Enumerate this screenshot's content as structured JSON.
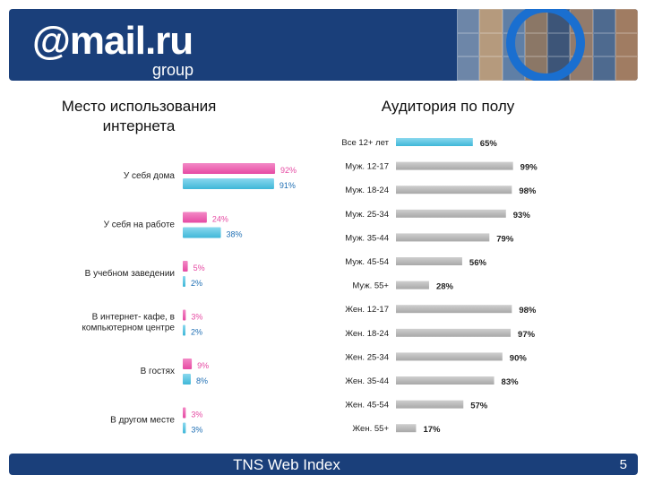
{
  "header": {
    "logo_text": "@mail.ru",
    "logo_sub": "group"
  },
  "footer": {
    "source": "TNS Web Index",
    "page_number": "5"
  },
  "colors": {
    "pink": "#e64aa3",
    "blue": "#3fb7d8",
    "gray": "#a8a8a8",
    "brand_blue": "#1a3f7a"
  },
  "chart_data": [
    {
      "type": "bar",
      "title": "Место использования интернета",
      "categories": [
        "У себя дома",
        "У себя на работе",
        "В учебном заведении",
        "В интернет- кафе, в компьютерном центре",
        "В гостях",
        "В другом месте"
      ],
      "category_lines": [
        [
          "У себя дома"
        ],
        [
          "У себя на работе"
        ],
        [
          "В учебном заведении"
        ],
        [
          "В интернет- кафе, в",
          "компьютерном центре"
        ],
        [
          "В гостях"
        ],
        [
          "В другом месте"
        ]
      ],
      "series": [
        {
          "values": [
            92,
            24,
            5,
            3,
            9,
            3
          ],
          "labels": [
            "92%",
            "24%",
            "5%",
            "3%",
            "9%",
            "3%"
          ]
        },
        {
          "values": [
            91,
            38,
            2,
            2,
            8,
            3
          ],
          "labels": [
            "91%",
            "38%",
            "2%",
            "2%",
            "8%",
            "3%"
          ]
        }
      ],
      "xlim": [
        0,
        100
      ]
    },
    {
      "type": "bar",
      "title": "Аудитория по полу",
      "categories": [
        "Все 12+ лет",
        "Муж. 12-17",
        "Муж. 18-24",
        "Муж. 25-34",
        "Муж. 35-44",
        "Муж. 45-54",
        "Муж. 55+",
        "Жен. 12-17",
        "Жен. 18-24",
        "Жен. 25-34",
        "Жен. 35-44",
        "Жен. 45-54",
        "Жен. 55+"
      ],
      "values": [
        65,
        99,
        98,
        93,
        79,
        56,
        28,
        98,
        97,
        90,
        83,
        57,
        17
      ],
      "labels": [
        "65%",
        "99%",
        "98%",
        "93%",
        "79%",
        "56%",
        "28%",
        "98%",
        "97%",
        "90%",
        "83%",
        "57%",
        "17%"
      ],
      "xlim": [
        0,
        100
      ]
    }
  ]
}
